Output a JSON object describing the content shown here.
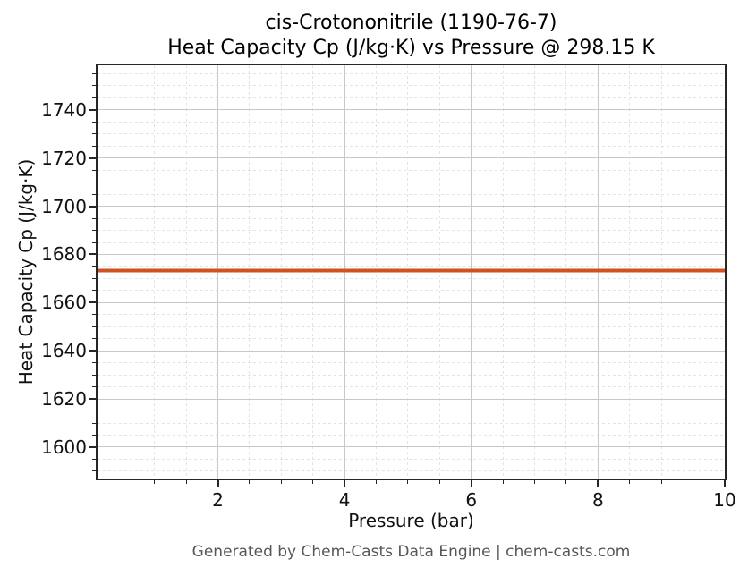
{
  "chart_data": {
    "type": "line",
    "title": "cis-Crotononitrile (1190-76-7)",
    "subtitle": "Heat Capacity Cp (J/kg·K) vs Pressure @ 298.15 K",
    "compound": "cis-Crotononitrile",
    "cas_number": "1190-76-7",
    "temperature_label": "298.15 K",
    "xlabel": "Pressure (bar)",
    "ylabel": "Heat Capacity Cp (J/kg·K)",
    "xlim": [
      0.1,
      10
    ],
    "ylim": [
      1587,
      1758.5
    ],
    "xticks": [
      2,
      4,
      6,
      8,
      10
    ],
    "yticks": [
      1600,
      1620,
      1640,
      1660,
      1680,
      1700,
      1720,
      1740
    ],
    "x_minor_step": 0.5,
    "y_minor_step": 5,
    "grid": {
      "major": true,
      "minor": true
    },
    "legend": false,
    "series": [
      {
        "name": "Heat Capacity Cp",
        "color": "#d0521e",
        "line_width": 4,
        "x": [
          0.1,
          10
        ],
        "y": [
          1673.3,
          1673.3
        ],
        "constant_value": 1673.3
      }
    ]
  },
  "footer": {
    "text": "Generated by Chem-Casts Data Engine | chem-casts.com"
  },
  "colors": {
    "axis": "#262626",
    "grid_major": "#c8c8c8",
    "grid_minor": "#e3e3e3",
    "text": "#111111",
    "footer_text": "#565656",
    "background": "#ffffff"
  }
}
